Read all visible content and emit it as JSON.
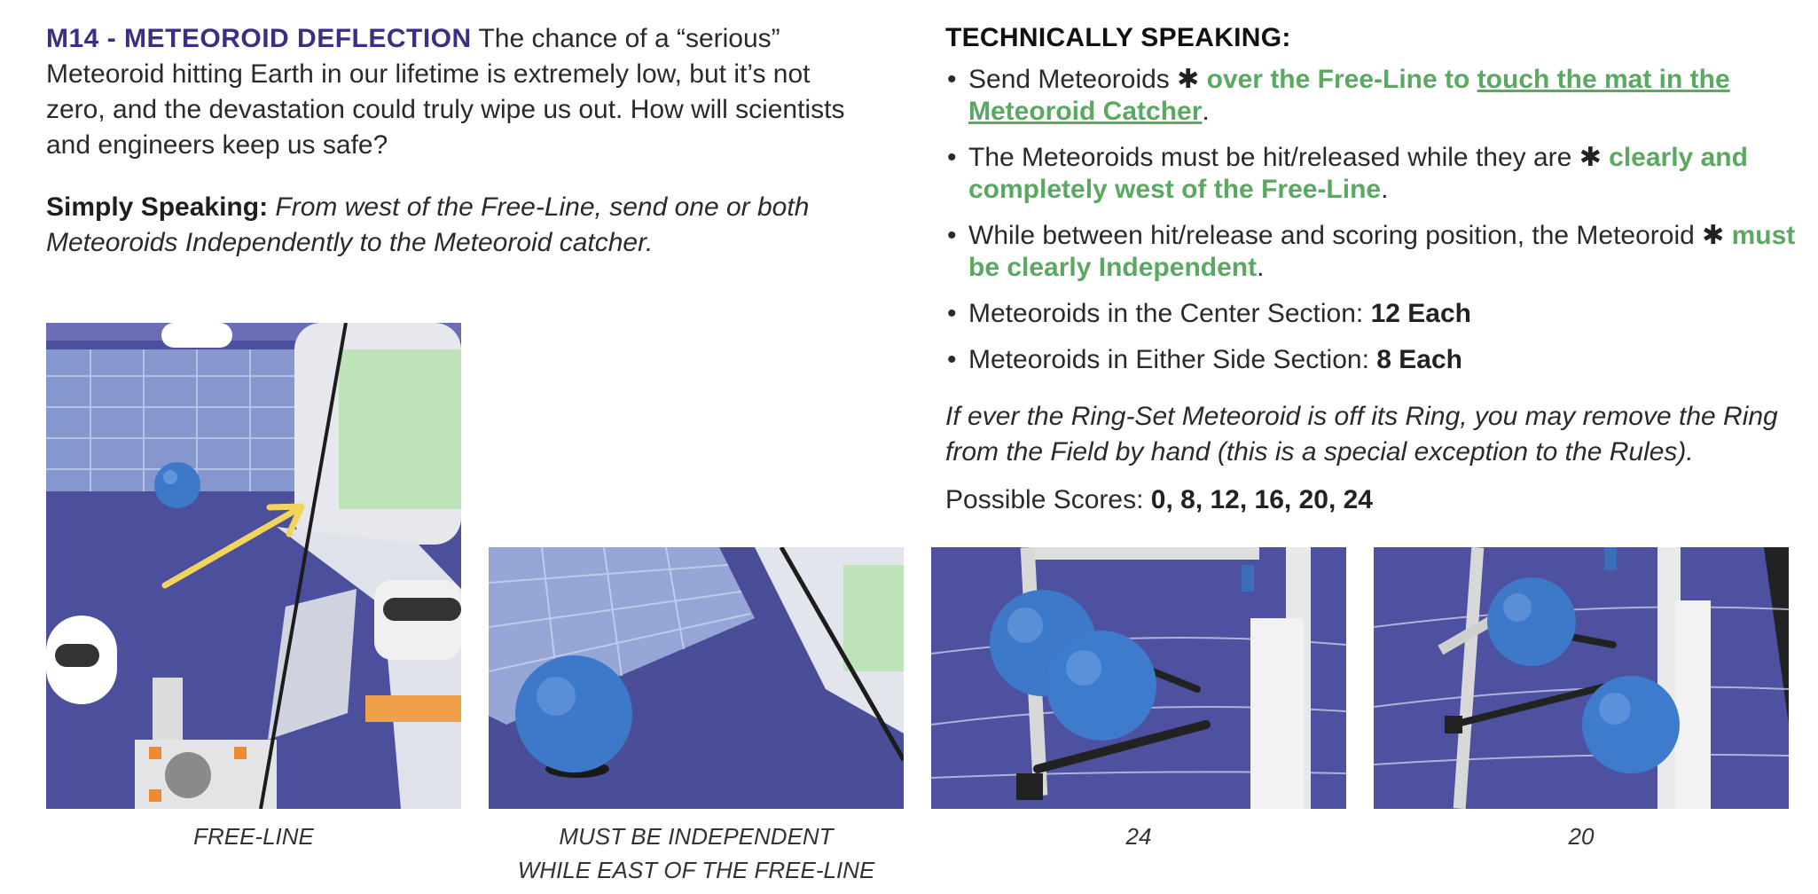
{
  "intro": {
    "title": "M14 - METEOROID DEFLECTION",
    "text": " The chance of a “serious” Meteoroid hitting Earth in our lifetime is extremely low, but it’s not zero, and the devastation could truly wipe us out. How will scientists and engineers keep us safe?"
  },
  "simply": {
    "label": "Simply Speaking:",
    "text": " From west of the Free-Line, send one or both Meteoroids Independently to the Meteoroid catcher."
  },
  "technical": {
    "title": "TECHNICALLY SPEAKING:",
    "bullet1": {
      "a": "Send Meteoroids ",
      "star": "✱",
      "b": " over the Free-Line to ",
      "c": "touch the mat in the Meteoroid Catcher",
      "d": "."
    },
    "bullet2": {
      "a": "The Meteoroids must be hit/released while they are ",
      "star": "✱",
      "b": " clearly and completely west of the Free-Line",
      "c": "."
    },
    "bullet3": {
      "a": "While between hit/release and scoring position, the Meteoroid ",
      "star": "✱",
      "b": " must be clearly Independent",
      "c": "."
    },
    "bullet4": {
      "a": "Meteoroids in the Center Section: ",
      "b": "12 Each"
    },
    "bullet5": {
      "a": "Meteoroids in Either Side Section: ",
      "b": "8 Each"
    },
    "bullet_mark": "•",
    "note": "If ever the Ring-Set Meteoroid is off its Ring, you may remove the Ring from the Field by hand (this is a special exception to the Rules).",
    "scores_label": "Possible Scores: ",
    "scores_values": "0, 8, 12, 16, 20, 24"
  },
  "captions": {
    "photo1": "FREE-LINE",
    "photo2_line1": "MUST BE INDEPENDENT",
    "photo2_line2": "WHILE EAST OF THE FREE-LINE",
    "photo3": "24",
    "photo4": "20"
  },
  "colors": {
    "mission_title": "#3a2f85",
    "highlight_green": "#5aa862",
    "mat_purple": "#4a4f9e",
    "meteoroid_blue": "#3d78c9",
    "arrow_yellow": "#f2d45c"
  }
}
